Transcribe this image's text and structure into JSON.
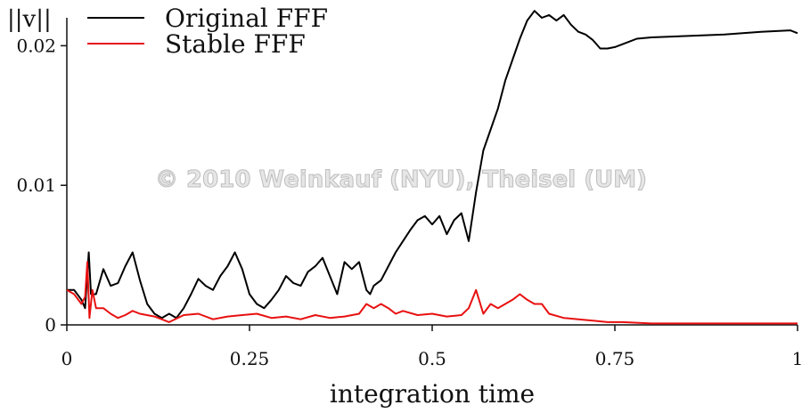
{
  "watermark": "© 2010 Weinkauf (NYU), Theisel (UM)",
  "chart_data": {
    "type": "line",
    "title": "",
    "xlabel": "integration time",
    "ylabel": "||v||",
    "xlim": [
      0,
      1
    ],
    "ylim": [
      0,
      0.022
    ],
    "x_ticks": [
      0,
      0.25,
      0.5,
      0.75,
      1
    ],
    "x_tick_labels": [
      "0",
      "0.25",
      "0.5",
      "0.75",
      "1"
    ],
    "y_ticks": [
      0,
      0.01,
      0.02
    ],
    "y_tick_labels": [
      "0",
      "0.01",
      "0.02"
    ],
    "legend_position": "top-left",
    "grid": false,
    "series": [
      {
        "name": "Original FFF",
        "color": "#000000",
        "x": [
          0,
          0.01,
          0.02,
          0.025,
          0.03,
          0.033,
          0.04,
          0.05,
          0.06,
          0.07,
          0.08,
          0.09,
          0.1,
          0.11,
          0.12,
          0.13,
          0.14,
          0.15,
          0.16,
          0.17,
          0.18,
          0.19,
          0.2,
          0.21,
          0.22,
          0.23,
          0.24,
          0.25,
          0.26,
          0.27,
          0.28,
          0.29,
          0.3,
          0.31,
          0.32,
          0.33,
          0.34,
          0.35,
          0.36,
          0.37,
          0.38,
          0.39,
          0.4,
          0.41,
          0.415,
          0.42,
          0.43,
          0.44,
          0.45,
          0.46,
          0.47,
          0.48,
          0.49,
          0.5,
          0.51,
          0.52,
          0.53,
          0.54,
          0.55,
          0.56,
          0.57,
          0.58,
          0.59,
          0.6,
          0.61,
          0.62,
          0.63,
          0.64,
          0.65,
          0.66,
          0.67,
          0.68,
          0.69,
          0.7,
          0.71,
          0.72,
          0.73,
          0.74,
          0.75,
          0.76,
          0.77,
          0.78,
          0.8,
          0.85,
          0.9,
          0.95,
          0.99,
          1.0
        ],
        "values": [
          0.0025,
          0.0025,
          0.0018,
          0.0012,
          0.0052,
          0.0022,
          0.0022,
          0.004,
          0.0028,
          0.003,
          0.0042,
          0.0052,
          0.0032,
          0.0015,
          0.0008,
          0.0005,
          0.0008,
          0.0005,
          0.0012,
          0.0022,
          0.0033,
          0.0028,
          0.0025,
          0.0035,
          0.0042,
          0.0052,
          0.004,
          0.0022,
          0.0015,
          0.0012,
          0.0018,
          0.0025,
          0.0035,
          0.003,
          0.0028,
          0.0038,
          0.0042,
          0.0048,
          0.0035,
          0.0022,
          0.0045,
          0.004,
          0.0045,
          0.0025,
          0.0022,
          0.0028,
          0.0032,
          0.0042,
          0.0052,
          0.006,
          0.0068,
          0.0075,
          0.0078,
          0.0072,
          0.0078,
          0.0065,
          0.0075,
          0.008,
          0.006,
          0.0095,
          0.0125,
          0.014,
          0.0155,
          0.0175,
          0.019,
          0.0205,
          0.0218,
          0.0225,
          0.022,
          0.0222,
          0.0218,
          0.0222,
          0.0215,
          0.021,
          0.0208,
          0.0204,
          0.0198,
          0.0198,
          0.0199,
          0.0201,
          0.0203,
          0.0205,
          0.0206,
          0.0207,
          0.0208,
          0.021,
          0.0211,
          0.0209
        ]
      },
      {
        "name": "Stable FFF",
        "color": "#e81010",
        "x": [
          0,
          0.01,
          0.02,
          0.025,
          0.028,
          0.031,
          0.035,
          0.04,
          0.05,
          0.06,
          0.07,
          0.08,
          0.09,
          0.1,
          0.12,
          0.14,
          0.16,
          0.18,
          0.2,
          0.22,
          0.24,
          0.26,
          0.28,
          0.3,
          0.32,
          0.34,
          0.36,
          0.38,
          0.4,
          0.41,
          0.42,
          0.43,
          0.44,
          0.45,
          0.46,
          0.48,
          0.5,
          0.52,
          0.54,
          0.55,
          0.56,
          0.57,
          0.58,
          0.59,
          0.6,
          0.61,
          0.62,
          0.63,
          0.64,
          0.65,
          0.66,
          0.68,
          0.7,
          0.72,
          0.74,
          0.76,
          0.8,
          0.85,
          0.9,
          0.95,
          1.0
        ],
        "values": [
          0.0025,
          0.0022,
          0.0015,
          0.002,
          0.0045,
          0.0005,
          0.0025,
          0.0012,
          0.0012,
          0.0008,
          0.0005,
          0.0007,
          0.001,
          0.0008,
          0.0006,
          0.0002,
          0.0007,
          0.0008,
          0.0004,
          0.0006,
          0.0007,
          0.0008,
          0.0005,
          0.0006,
          0.0004,
          0.0007,
          0.0005,
          0.0006,
          0.0008,
          0.0015,
          0.0012,
          0.0015,
          0.0012,
          0.0008,
          0.001,
          0.0007,
          0.0008,
          0.0006,
          0.0007,
          0.0012,
          0.0025,
          0.0008,
          0.0015,
          0.0012,
          0.0015,
          0.0018,
          0.0022,
          0.0018,
          0.0015,
          0.0015,
          0.0008,
          0.0005,
          0.0004,
          0.0003,
          0.0002,
          0.0002,
          0.0001,
          0.0001,
          0.0001,
          0.0001,
          0.0001
        ]
      }
    ]
  }
}
